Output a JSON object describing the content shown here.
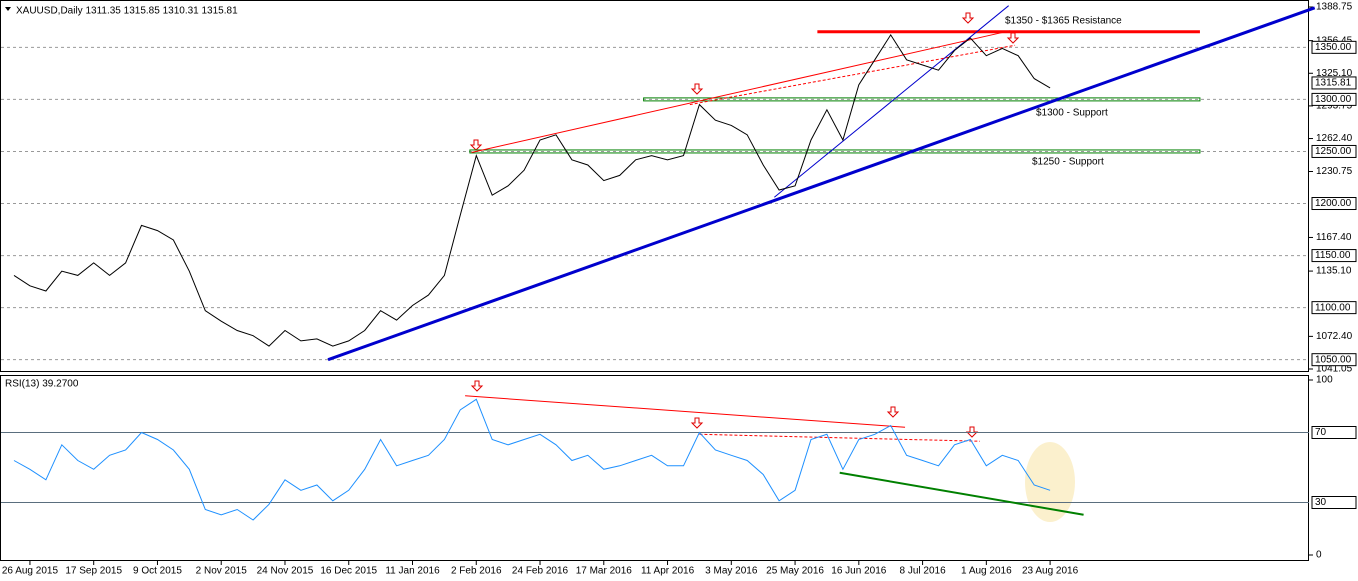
{
  "chart_data": [
    {
      "type": "line",
      "title": "XAUUSD,Daily  1311.35 1315.85 1310.31 1315.81",
      "series": [
        {
          "name": "XAUUSD",
          "color": "#000000",
          "values": [
            1131,
            1121,
            1116,
            1135,
            1131,
            1143,
            1131,
            1143,
            1179,
            1174,
            1165,
            1135,
            1097,
            1087,
            1078,
            1073,
            1063,
            1078,
            1068,
            1070,
            1063,
            1068,
            1078,
            1097,
            1088,
            1102,
            1112,
            1131,
            1189,
            1246,
            1208,
            1217,
            1232,
            1261,
            1266,
            1242,
            1237,
            1222,
            1227,
            1242,
            1246,
            1242,
            1246,
            1295,
            1280,
            1275,
            1266,
            1237,
            1213,
            1217,
            1261,
            1290,
            1261,
            1314,
            1338,
            1362,
            1338,
            1333,
            1328,
            1347,
            1359,
            1342,
            1349,
            1342,
            1320,
            1311
          ]
        }
      ],
      "ylim": [
        1041.05,
        1388.75
      ],
      "yticks": [
        1388.75,
        1356.45,
        {
          "value": 1325.1,
          "label": "1325.10"
        },
        1293.75,
        {
          "value": 1262.4,
          "label": "1262.40"
        },
        1230.75,
        {
          "value": 1167.4,
          "label": "1167.40"
        },
        {
          "value": 1135.1,
          "label": "1135.10"
        },
        {
          "value": 1072.4,
          "label": "1072.40"
        },
        1041.05
      ],
      "grid_levels": [
        {
          "value": 1350,
          "label": "1350.00"
        },
        {
          "value": 1300,
          "label": "1300.00"
        },
        {
          "value": 1250,
          "label": "1250.00"
        },
        {
          "value": 1200,
          "label": "1200.00"
        },
        {
          "value": 1150,
          "label": "1150.00"
        },
        {
          "value": 1100,
          "label": "1100.00"
        },
        {
          "value": 1050,
          "label": "1050.00"
        }
      ],
      "last_price": 1315.81,
      "trendlines": [
        {
          "color": "#0000cd",
          "x": [
            19.7,
            81.6
          ],
          "y": [
            1050,
            1388
          ]
        },
        {
          "color": "#0000cd",
          "x": [
            47.7,
            62.4
          ],
          "y": [
            1206,
            1390
          ]
        },
        {
          "color": "#ff0000",
          "x": [
            28.7,
            62.5
          ],
          "y": [
            1249,
            1366
          ]
        },
        {
          "color": "#ff0000",
          "x": [
            42.4,
            62.8
          ],
          "y": [
            1295,
            1352
          ],
          "dashed": true
        }
      ],
      "zones": [
        {
          "color": "#ff0000",
          "x": [
            50.4,
            74.4
          ],
          "y": 1365
        },
        {
          "color": "#008000",
          "x": [
            39.5,
            74.4
          ],
          "y": 1300
        },
        {
          "color": "#008000",
          "x": [
            28.6,
            74.4
          ],
          "y": 1250
        }
      ],
      "annotations": [
        {
          "text": "$1350 - $1365 Resistance"
        },
        {
          "text": "$1300 - Support"
        },
        {
          "text": "$1250 - Support"
        }
      ]
    },
    {
      "type": "line",
      "title": "RSI(13) 39.2700",
      "categories": [
        null,
        "26 Aug 2015",
        null,
        null,
        null,
        "17 Sep 2015",
        null,
        null,
        null,
        "9 Oct 2015",
        null,
        null,
        null,
        "2 Nov 2015",
        null,
        null,
        null,
        "24 Nov 2015",
        null,
        null,
        null,
        "16 Dec 2015",
        null,
        null,
        null,
        "11 Jan 2016",
        null,
        null,
        null,
        "2 Feb 2016",
        null,
        null,
        null,
        "24 Feb 2016",
        null,
        null,
        null,
        "17 Mar 2016",
        null,
        null,
        null,
        "11 Apr 2016",
        null,
        null,
        null,
        "3 May 2016",
        null,
        null,
        null,
        "25 May 2016",
        null,
        null,
        null,
        "16 Jun 2016",
        null,
        null,
        null,
        "8 Jul 2016",
        null,
        null,
        null,
        "1 Aug 2016",
        null,
        null,
        null,
        "23 Aug 2016"
      ],
      "series": [
        {
          "name": "RSI(13)",
          "color": "#1e90ff",
          "values": [
            54,
            49,
            43,
            63,
            54,
            49,
            57,
            60,
            70,
            66,
            60,
            49,
            26,
            23,
            26,
            20,
            29,
            43,
            37,
            40,
            31,
            37,
            49,
            66,
            51,
            54,
            57,
            66,
            83,
            89,
            66,
            63,
            66,
            69,
            63,
            54,
            57,
            49,
            51,
            54,
            57,
            51,
            51,
            70,
            60,
            57,
            54,
            46,
            31,
            37,
            66,
            69,
            49,
            66,
            69,
            74,
            57,
            54,
            51,
            63,
            66,
            51,
            57,
            54,
            40,
            37
          ]
        }
      ],
      "ylim": [
        0,
        100
      ],
      "yticks": [
        100,
        0
      ],
      "levels": [
        70,
        30
      ],
      "trendlines": [
        {
          "color": "#ff0000",
          "x": [
            28.3,
            55.9
          ],
          "y": [
            91,
            73
          ]
        },
        {
          "color": "#ff0000",
          "x": [
            43,
            60.6
          ],
          "y": [
            69,
            65
          ],
          "dashed": true
        },
        {
          "color": "#008000",
          "x": [
            51.8,
            67.1
          ],
          "y": [
            47,
            23
          ]
        }
      ]
    }
  ]
}
